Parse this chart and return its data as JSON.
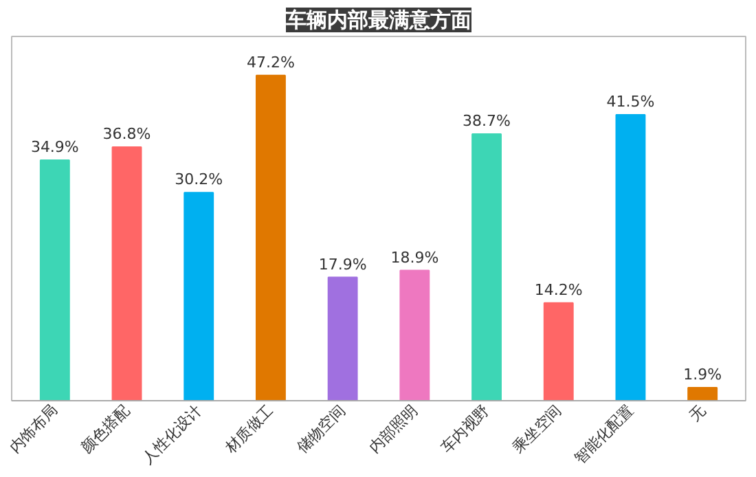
{
  "chart_data": {
    "type": "bar",
    "title": "车辆内部最满意方面",
    "categories": [
      "内饰布局",
      "颜色搭配",
      "人性化设计",
      "材质做工",
      "储物空间",
      "内部照明",
      "车内视野",
      "乘坐空间",
      "智能化配置",
      "无"
    ],
    "values": [
      34.9,
      36.8,
      30.2,
      47.2,
      17.9,
      18.9,
      38.7,
      14.2,
      41.5,
      1.9
    ],
    "value_labels": [
      "34.9%",
      "36.8%",
      "30.2%",
      "47.2%",
      "17.9%",
      "18.9%",
      "38.7%",
      "14.2%",
      "41.5%",
      "1.9%"
    ],
    "colors": [
      "#3dd6b5",
      "#ff6666",
      "#00b0f0",
      "#e07800",
      "#a070e0",
      "#ee78c0",
      "#3dd6b5",
      "#ff6666",
      "#00b0f0",
      "#e07800"
    ],
    "grid": false
  }
}
